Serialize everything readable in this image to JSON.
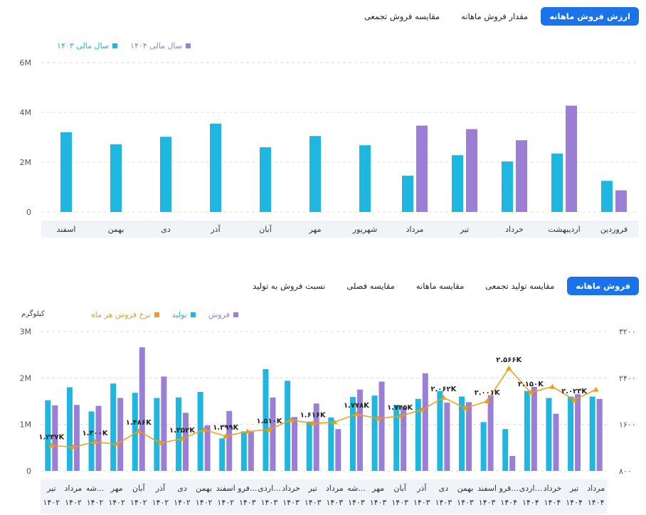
{
  "tabs_top": [
    {
      "label": "ارزش فروش ماهانه",
      "active": true
    },
    {
      "label": "مقدار فروش ماهانه",
      "active": false
    },
    {
      "label": "مقایسه فروش تجمعی",
      "active": false
    }
  ],
  "tabs_mid": [
    {
      "label": "فروش ماهانه",
      "active": true
    },
    {
      "label": "مقایسه تولید تجمعی",
      "active": false
    },
    {
      "label": "مقایسه ماهانه",
      "active": false
    },
    {
      "label": "مقایسه فصلی",
      "active": false
    },
    {
      "label": "نسبت فروش به تولید",
      "active": false
    }
  ],
  "colors": {
    "cyan": "#1fb6e0",
    "purple": "#9b7fd6",
    "orange": "#f39c12",
    "band": "#f1f3f8",
    "grid": "#dcdcdc"
  },
  "chart_data": [
    {
      "type": "bar",
      "legend": [
        "سال مالی ۱۴۰۳",
        "سال مالی ۱۴۰۴"
      ],
      "categories": [
        "فروردین",
        "اردیبهشت",
        "خرداد",
        "تیر",
        "مرداد",
        "شهریور",
        "مهر",
        "آبان",
        "آذر",
        "دی",
        "بهمن",
        "اسفند"
      ],
      "series": [
        {
          "name": "سال مالی ۱۴۰۳",
          "color": "#1fb6e0",
          "values": [
            1.25,
            2.35,
            2.03,
            2.28,
            1.46,
            2.68,
            3.05,
            2.6,
            3.55,
            3.02,
            2.72,
            3.2
          ]
        },
        {
          "name": "سال مالی ۱۴۰۴",
          "color": "#9b7fd6",
          "values": [
            0.87,
            4.27,
            2.88,
            3.33,
            3.47,
            null,
            null,
            null,
            null,
            null,
            null,
            null
          ]
        }
      ],
      "y_ticks": [
        "0",
        "2M",
        "4M",
        "6M"
      ],
      "ylim": [
        0,
        6
      ]
    },
    {
      "type": "bar",
      "unit_label": "کیلوگرم",
      "legend": [
        "فروش",
        "تولید",
        "نرخ فروش هر ماه"
      ],
      "categories": [
        [
          "تیر",
          "۱۴۰۲"
        ],
        [
          "مرداد",
          "۱۴۰۲"
        ],
        [
          "شه...",
          "۱۴۰۲"
        ],
        [
          "مهر",
          "۱۴۰۲"
        ],
        [
          "آبان",
          "۱۴۰۲"
        ],
        [
          "آذر",
          "۱۴۰۲"
        ],
        [
          "دی",
          "۱۴۰۲"
        ],
        [
          "بهمن",
          "۱۴۰۲"
        ],
        [
          "اسفند",
          "۱۴۰۲"
        ],
        [
          "فرو...",
          "۱۴۰۳"
        ],
        [
          "اردی...",
          "۱۴۰۳"
        ],
        [
          "خرداد",
          "۱۴۰۳"
        ],
        [
          "تیر",
          "۱۴۰۳"
        ],
        [
          "مرداد",
          "۱۴۰۳"
        ],
        [
          "شه...",
          "۱۴۰۳"
        ],
        [
          "مهر",
          "۱۴۰۳"
        ],
        [
          "آبان",
          "۱۴۰۳"
        ],
        [
          "آذر",
          "۱۴۰۳"
        ],
        [
          "دی",
          "۱۴۰۳"
        ],
        [
          "بهمن",
          "۱۴۰۳"
        ],
        [
          "اسفند",
          "۱۴۰۳"
        ],
        [
          "فرو...",
          "۱۴۰۴"
        ],
        [
          "اردی...",
          "۱۴۰۴"
        ],
        [
          "خرداد",
          "۱۴۰۴"
        ],
        [
          "تیر",
          "۱۴۰۴"
        ],
        [
          "مرداد",
          "۱۴۰۴"
        ]
      ],
      "series": [
        {
          "name": "تولید",
          "color": "#1fb6e0",
          "values": [
            1.52,
            1.8,
            1.28,
            1.88,
            1.68,
            1.57,
            1.58,
            1.7,
            0.7,
            0.85,
            2.19,
            1.94,
            1.06,
            1.15,
            1.59,
            1.62,
            1.42,
            1.55,
            1.72,
            1.6,
            1.05,
            0.9,
            1.72,
            1.57,
            1.6,
            1.6
          ]
        },
        {
          "name": "فروش",
          "color": "#9b7fd6",
          "values": [
            1.41,
            1.42,
            1.4,
            1.57,
            2.66,
            2.03,
            1.25,
            0.98,
            1.29,
            0.84,
            1.58,
            1.16,
            1.45,
            0.9,
            1.75,
            1.92,
            1.38,
            2.1,
            1.47,
            1.48,
            1.63,
            0.32,
            1.81,
            1.23,
            1.65,
            1.55
          ]
        },
        {
          "name": "نرخ فروش هر ماه",
          "color": "#f39c12",
          "axis": "right",
          "values": [
            1237,
            1210,
            1300,
            1260,
            1486,
            1280,
            1352,
            1510,
            1399,
            1480,
            1510,
            1680,
            1616,
            1640,
            1778,
            1700,
            1745,
            1850,
            2062,
            1880,
            2001,
            2566,
            2150,
            2250,
            2023,
            2200
          ]
        }
      ],
      "data_labels": [
        {
          "index": 0,
          "text": "۱.۲۳۷K"
        },
        {
          "index": 2,
          "text": "۱.۳۰۰K"
        },
        {
          "index": 4,
          "text": "۱.۴۸۶K"
        },
        {
          "index": 6,
          "text": "۱.۳۵۲K"
        },
        {
          "index": 8,
          "text": "۱.۳۹۹K"
        },
        {
          "index": 10,
          "text": "۱.۵۱۰K"
        },
        {
          "index": 12,
          "text": "۱.۶۱۶K"
        },
        {
          "index": 14,
          "text": "۱.۷۷۸K"
        },
        {
          "index": 16,
          "text": "۱.۷۴۵K"
        },
        {
          "index": 18,
          "text": "۲.۰۶۲K"
        },
        {
          "index": 20,
          "text": "۲.۰۰۱K"
        },
        {
          "index": 21,
          "text": "۲.۵۶۶K"
        },
        {
          "index": 22,
          "text": "۲.۱۵۰K"
        },
        {
          "index": 24,
          "text": "۲.۰۲۳K"
        }
      ],
      "y_ticks": [
        "0",
        "1M",
        "2M",
        "3M"
      ],
      "ylim": [
        0,
        3
      ],
      "y2_ticks": [
        "۸۰۰",
        "۱۶۰۰",
        "۲۴۰۰",
        "۳۲۰۰"
      ],
      "y2lim": [
        800,
        3200
      ]
    }
  ]
}
